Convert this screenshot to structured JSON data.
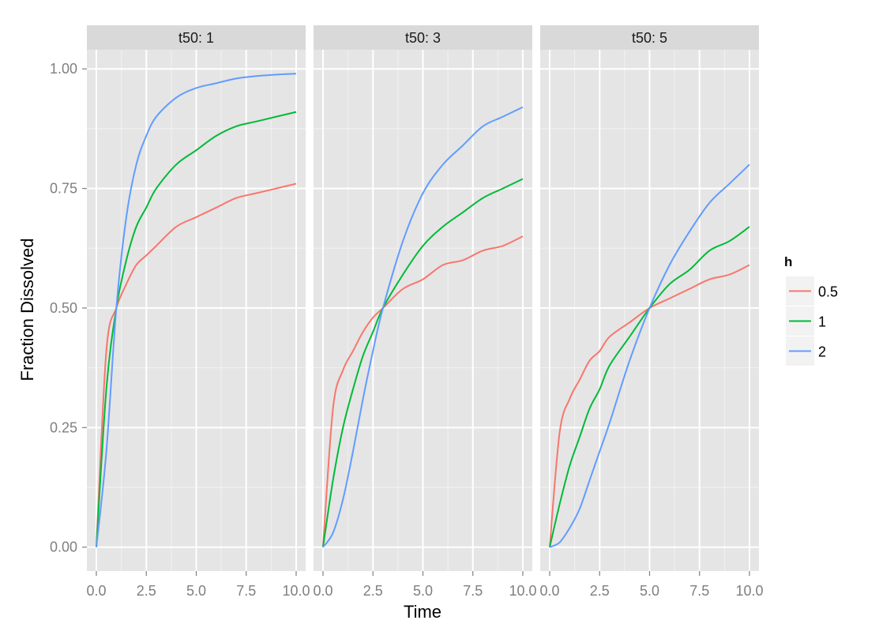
{
  "chart_data": {
    "type": "line",
    "xlabel": "Time",
    "ylabel": "Fraction Dissolved",
    "xlim": [
      0,
      10
    ],
    "ylim": [
      0,
      1
    ],
    "x_ticks": [
      "0.0",
      "2.5",
      "5.0",
      "7.5",
      "10.0"
    ],
    "x_tick_values": [
      0,
      2.5,
      5,
      7.5,
      10
    ],
    "y_ticks": [
      "0.00",
      "0.25",
      "0.50",
      "0.75",
      "1.00"
    ],
    "y_tick_values": [
      0,
      0.25,
      0.5,
      0.75,
      1
    ],
    "grid": true,
    "legend": {
      "title": "h",
      "placement": "right",
      "entries": [
        {
          "label": "0.5",
          "color": "#F8766D"
        },
        {
          "label": "1",
          "color": "#00BA38"
        },
        {
          "label": "2",
          "color": "#619CFF"
        }
      ]
    },
    "panels": [
      {
        "strip": "t50: 1",
        "series": [
          {
            "name": "0.5",
            "color": "#F8766D",
            "x": [
              0,
              0.5,
              1,
              1.5,
              2,
              2.5,
              3,
              4,
              5,
              6,
              7,
              8,
              9,
              10
            ],
            "values": [
              0,
              0.41,
              0.5,
              0.55,
              0.59,
              0.61,
              0.63,
              0.67,
              0.69,
              0.71,
              0.73,
              0.74,
              0.75,
              0.76
            ]
          },
          {
            "name": "1",
            "color": "#00BA38",
            "x": [
              0,
              0.5,
              1,
              1.5,
              2,
              2.5,
              3,
              4,
              5,
              6,
              7,
              8,
              9,
              10
            ],
            "values": [
              0,
              0.33,
              0.5,
              0.6,
              0.67,
              0.71,
              0.75,
              0.8,
              0.83,
              0.86,
              0.88,
              0.89,
              0.9,
              0.91
            ]
          },
          {
            "name": "2",
            "color": "#619CFF",
            "x": [
              0,
              0.5,
              1,
              1.5,
              2,
              2.5,
              3,
              4,
              5,
              6,
              7,
              8,
              9,
              10
            ],
            "values": [
              0,
              0.2,
              0.5,
              0.69,
              0.8,
              0.86,
              0.9,
              0.94,
              0.96,
              0.97,
              0.98,
              0.985,
              0.988,
              0.99
            ]
          }
        ]
      },
      {
        "strip": "t50: 3",
        "series": [
          {
            "name": "0.5",
            "color": "#F8766D",
            "x": [
              0,
              0.5,
              1,
              1.5,
              2,
              2.5,
              3,
              4,
              5,
              6,
              7,
              8,
              9,
              10
            ],
            "values": [
              0,
              0.29,
              0.37,
              0.41,
              0.45,
              0.48,
              0.5,
              0.54,
              0.56,
              0.59,
              0.6,
              0.62,
              0.63,
              0.65
            ]
          },
          {
            "name": "1",
            "color": "#00BA38",
            "x": [
              0,
              0.5,
              1,
              1.5,
              2,
              2.5,
              3,
              4,
              5,
              6,
              7,
              8,
              9,
              10
            ],
            "values": [
              0,
              0.14,
              0.25,
              0.33,
              0.4,
              0.45,
              0.5,
              0.57,
              0.63,
              0.67,
              0.7,
              0.73,
              0.75,
              0.77
            ]
          },
          {
            "name": "2",
            "color": "#619CFF",
            "x": [
              0,
              0.5,
              1,
              1.5,
              2,
              2.5,
              3,
              4,
              5,
              6,
              7,
              8,
              9,
              10
            ],
            "values": [
              0,
              0.03,
              0.1,
              0.2,
              0.31,
              0.41,
              0.5,
              0.64,
              0.74,
              0.8,
              0.84,
              0.88,
              0.9,
              0.92
            ]
          }
        ]
      },
      {
        "strip": "t50: 5",
        "series": [
          {
            "name": "0.5",
            "color": "#F8766D",
            "x": [
              0,
              0.5,
              1,
              1.5,
              2,
              2.5,
              3,
              4,
              5,
              6,
              7,
              8,
              9,
              10
            ],
            "values": [
              0,
              0.24,
              0.31,
              0.35,
              0.39,
              0.41,
              0.44,
              0.47,
              0.5,
              0.52,
              0.54,
              0.56,
              0.57,
              0.59
            ]
          },
          {
            "name": "1",
            "color": "#00BA38",
            "x": [
              0,
              0.5,
              1,
              1.5,
              2,
              2.5,
              3,
              4,
              5,
              6,
              7,
              8,
              9,
              10
            ],
            "values": [
              0,
              0.09,
              0.17,
              0.23,
              0.29,
              0.33,
              0.38,
              0.44,
              0.5,
              0.55,
              0.58,
              0.62,
              0.64,
              0.67
            ]
          },
          {
            "name": "2",
            "color": "#619CFF",
            "x": [
              0,
              0.5,
              1,
              1.5,
              2,
              2.5,
              3,
              4,
              5,
              6,
              7,
              8,
              9,
              10
            ],
            "values": [
              0,
              0.01,
              0.04,
              0.08,
              0.14,
              0.2,
              0.26,
              0.39,
              0.5,
              0.59,
              0.66,
              0.72,
              0.76,
              0.8
            ]
          }
        ]
      }
    ]
  }
}
